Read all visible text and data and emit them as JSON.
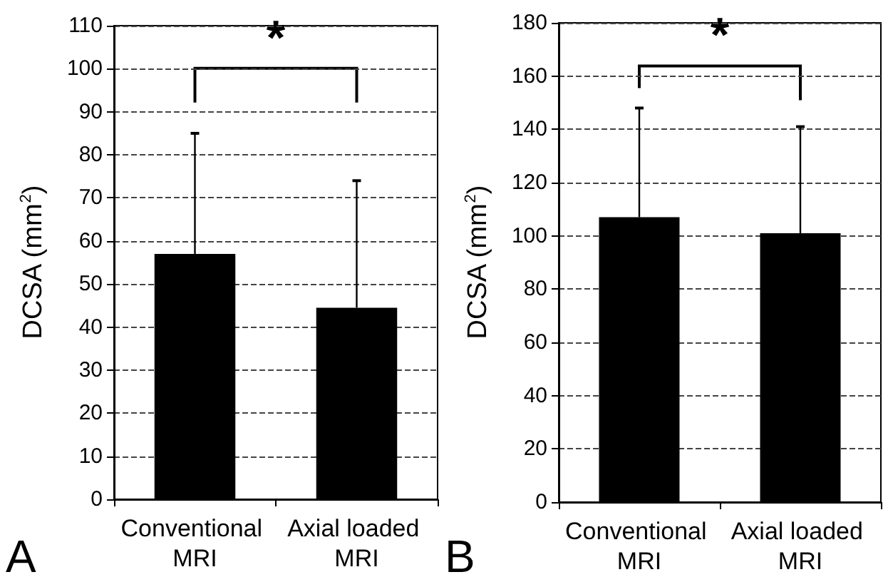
{
  "chart_data": [
    {
      "type": "bar",
      "categories": [
        "Conventional MRI",
        "Axial loaded MRI"
      ],
      "ylabel": "DCSA (mm$^{2}$)",
      "annotations": [
        "A",
        "*"
      ],
      "series": [
        {
          "color": "#000000",
          "values": [
            57,
            44.5
          ],
          "errors": [
            [
              57,
              85
            ],
            [
              44.5,
              74
            ]
          ]
        }
      ],
      "ylim": [
        0,
        110
      ],
      "yticks": [
        0,
        10,
        20,
        30,
        40,
        50,
        60,
        70,
        80,
        90,
        100,
        110
      ],
      "grid": "y",
      "line_style": "dashed"
    },
    {
      "type": "bar",
      "categories": [
        "Conventional MRI",
        "Axial loaded MRI"
      ],
      "ylabel": "DCSA (mm$^{2}$)",
      "annotations": [
        "B",
        "*"
      ],
      "series": [
        {
          "color": "#000000",
          "values": [
            107,
            101
          ],
          "errors": [
            [
              107,
              148
            ],
            [
              101,
              141
            ]
          ]
        }
      ],
      "ylim": [
        0,
        180
      ],
      "yticks": [
        0,
        20,
        40,
        60,
        80,
        100,
        120,
        140,
        160,
        180
      ],
      "grid": "y",
      "line_style": "dashed"
    }
  ]
}
